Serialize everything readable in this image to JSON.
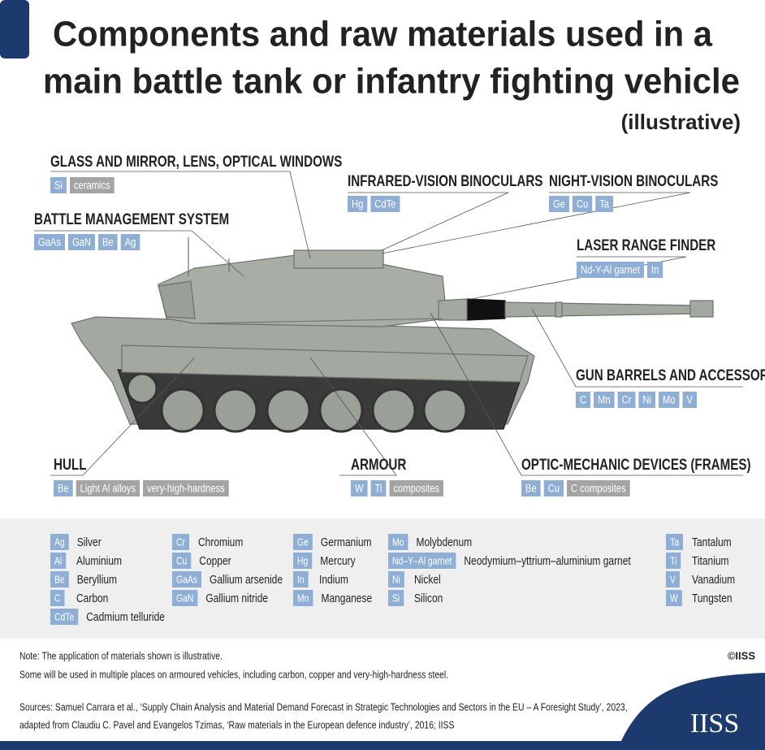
{
  "header": {
    "title_lines": [
      "Components and raw materials used in a",
      "main battle tank or infantry fighting vehicle"
    ],
    "subtitle": "(illustrative)"
  },
  "callouts": [
    {
      "label": "GLASS AND MIRROR, LENS, OPTICAL WINDOWS",
      "tags": [
        {
          "text": "Si",
          "color": "#8eaed6"
        },
        {
          "text": "ceramics",
          "color": "#a4a4a4"
        }
      ]
    },
    {
      "label": "BATTLE MANAGEMENT SYSTEM",
      "tags": [
        {
          "text": "GaAs",
          "color": "#8eaed6"
        },
        {
          "text": "GaN",
          "color": "#8eaed6"
        },
        {
          "text": "Be",
          "color": "#8eaed6"
        },
        {
          "text": "Ag",
          "color": "#8eaed6"
        }
      ]
    },
    {
      "label": "INFRARED-VISION BINOCULARS",
      "tags": [
        {
          "text": "Hg",
          "color": "#8eaed6"
        },
        {
          "text": "CdTe",
          "color": "#8eaed6"
        }
      ]
    },
    {
      "label": "NIGHT-VISION BINOCULARS",
      "tags": [
        {
          "text": "Ge",
          "color": "#8eaed6"
        },
        {
          "text": "Cu",
          "color": "#8eaed6"
        },
        {
          "text": "Ta",
          "color": "#8eaed6"
        }
      ]
    },
    {
      "label": "LASER RANGE FINDER",
      "tags": [
        {
          "text": "Nd-Y-Al garnet",
          "color": "#8eaed6"
        },
        {
          "text": "In",
          "color": "#8eaed6"
        }
      ]
    },
    {
      "label": "GUN BARRELS AND ACCESSORIES",
      "tags": [
        {
          "text": "C",
          "color": "#8eaed6"
        },
        {
          "text": "Mn",
          "color": "#8eaed6"
        },
        {
          "text": "Cr",
          "color": "#8eaed6"
        },
        {
          "text": "Ni",
          "color": "#8eaed6"
        },
        {
          "text": "Mo",
          "color": "#8eaed6"
        },
        {
          "text": "V",
          "color": "#8eaed6"
        }
      ]
    },
    {
      "label": "HULL",
      "tags": [
        {
          "text": "Be",
          "color": "#8eaed6"
        },
        {
          "text": "Light Al alloys",
          "color": "#a4a4a4"
        },
        {
          "text": "very-high-hardness",
          "color": "#a4a4a4"
        }
      ]
    },
    {
      "label": "ARMOUR",
      "tags": [
        {
          "text": "W",
          "color": "#8eaed6"
        },
        {
          "text": "Ti",
          "color": "#8eaed6"
        },
        {
          "text": "composites",
          "color": "#a4a4a4"
        }
      ]
    },
    {
      "label": "OPTIC-MECHANIC DEVICES (FRAMES)",
      "tags": [
        {
          "text": "Be",
          "color": "#8eaed6"
        },
        {
          "text": "Cu",
          "color": "#8eaed6"
        },
        {
          "text": "C composites",
          "color": "#a4a4a4"
        }
      ]
    }
  ],
  "legend": {
    "columns": [
      [
        {
          "symbol": "Ag",
          "name": "Silver"
        },
        {
          "symbol": "Al",
          "name": "Aluminium"
        },
        {
          "symbol": "Be",
          "name": "Beryllium"
        },
        {
          "symbol": "C",
          "name": "Carbon"
        },
        {
          "symbol": "CdTe",
          "name": "Cadmium telluride"
        }
      ],
      [
        {
          "symbol": "Cr",
          "name": "Chromium"
        },
        {
          "symbol": "Cu",
          "name": "Copper"
        },
        {
          "symbol": "GaAs",
          "name": "Gallium arsenide"
        },
        {
          "symbol": "GaN",
          "name": "Gallium nitride"
        }
      ],
      [
        {
          "symbol": "Ge",
          "name": "Germanium"
        },
        {
          "symbol": "Hg",
          "name": "Mercury"
        },
        {
          "symbol": "In",
          "name": "Indium"
        },
        {
          "symbol": "Mn",
          "name": "Manganese"
        }
      ],
      [
        {
          "symbol": "Mo",
          "name": "Molybdenum"
        },
        {
          "symbol": "Nd–Y–Al garnet",
          "name": "Neodymium–yttrium–aluminium garnet"
        },
        {
          "symbol": "Ni",
          "name": "Nickel"
        },
        {
          "symbol": "Si",
          "name": "Silicon"
        }
      ],
      [
        {
          "symbol": "Ta",
          "name": "Tantalum"
        },
        {
          "symbol": "Ti",
          "name": "Titanium"
        },
        {
          "symbol": "V",
          "name": "Vanadium"
        },
        {
          "symbol": "W",
          "name": "Tungsten"
        }
      ]
    ]
  },
  "notes": [
    "Note: The application of materials shown is illustrative.",
    "Some will be used in multiple places on armoured vehicles, including carbon, copper and very-high-hardness steel."
  ],
  "sources": [
    "Sources: Samuel Carrara et al., ‘Supply Chain Analysis and Material Demand Forecast in Strategic Technologies and Sectors in the EU – A Foresight Study’, 2023,",
    "adapted from Claudiu C. Pavel and Evangelos Tzimas, ‘Raw materials in the European defence industry’, 2016; IISS"
  ],
  "copyright": "©IISS",
  "logo": "IISS"
}
